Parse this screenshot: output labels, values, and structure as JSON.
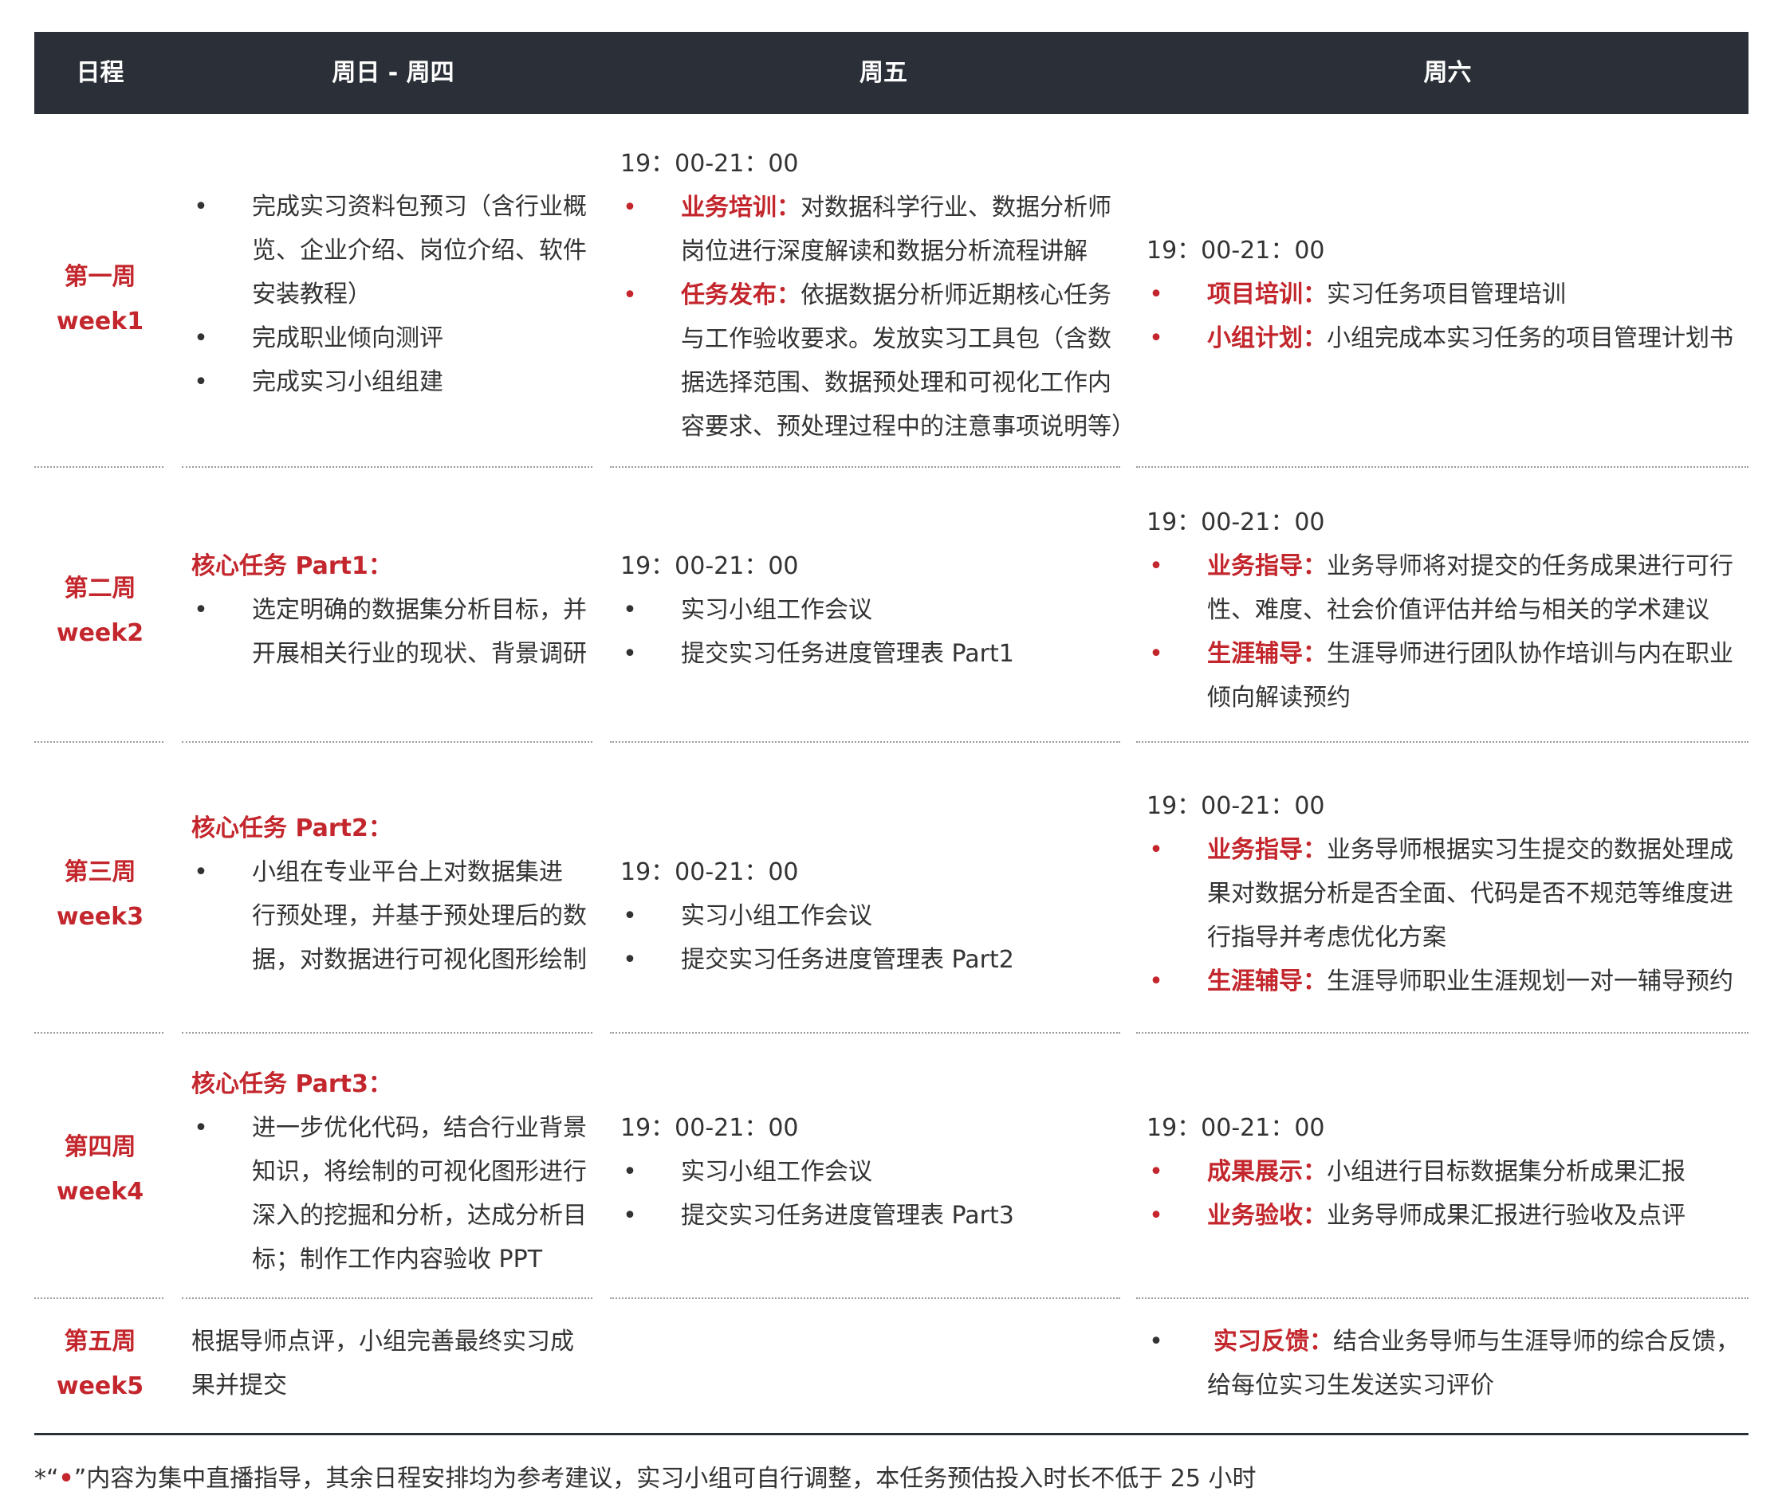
{
  "header": {
    "col1": "日程",
    "col2": "周日 - 周四",
    "col3": "周五",
    "col4": "周六"
  },
  "rows": [
    {
      "week_cn": "第一周",
      "week_en": "week1",
      "sun_thu": {
        "lines": [
          [
            "完成实习资料包预习（含行业概",
            "览、企业介绍、岗位介绍、软件",
            "安装教程）"
          ],
          [
            "完成职业倾向测评"
          ],
          [
            "完成实习小组组建"
          ]
        ]
      },
      "fri": {
        "time": "19：00-21：00",
        "items": [
          {
            "label": "业务培训：",
            "lines": [
              "对数据科学行业、数据分析师",
              "岗位进行深度解读和数据分析流程讲解"
            ]
          },
          {
            "label": "任务发布：",
            "lines": [
              "依据数据分析师近期核心任务",
              "与工作验收要求。发放实习工具包（含数",
              "据选择范围、数据预处理和可视化工作内",
              "容要求、预处理过程中的注意事项说明等）"
            ]
          }
        ]
      },
      "sat": {
        "time": "19：00-21：00",
        "items": [
          {
            "label": "项目培训：",
            "lines": [
              "实习任务项目管理培训"
            ]
          },
          {
            "label": "小组计划：",
            "lines": [
              "小组完成本实习任务的项目管理计划书"
            ]
          }
        ]
      }
    },
    {
      "week_cn": "第二周",
      "week_en": "week2",
      "sun_thu": {
        "title": "核心任务 Part1：",
        "lines": [
          [
            "选定明确的数据集分析目标，并",
            "开展相关行业的现状、背景调研"
          ]
        ]
      },
      "fri": {
        "time": "19：00-21：00",
        "plain": [
          "实习小组工作会议",
          "提交实习任务进度管理表 Part1"
        ]
      },
      "sat": {
        "time": "19：00-21：00",
        "items": [
          {
            "label": "业务指导：",
            "lines": [
              "业务导师将对提交的任务成果进行可行",
              "性、难度、社会价值评估并给与相关的学术建议"
            ]
          },
          {
            "label": "生涯辅导：",
            "lines": [
              "生涯导师进行团队协作培训与内在职业",
              "倾向解读预约"
            ]
          }
        ]
      }
    },
    {
      "week_cn": "第三周",
      "week_en": "week3",
      "sun_thu": {
        "title": "核心任务 Part2：",
        "lines": [
          [
            "小组在专业平台上对数据集进",
            "行预处理，并基于预处理后的数",
            "据，对数据进行可视化图形绘制"
          ]
        ]
      },
      "fri": {
        "time": "19：00-21：00",
        "plain": [
          "实习小组工作会议",
          "提交实习任务进度管理表 Part2"
        ]
      },
      "sat": {
        "time": "19：00-21：00",
        "items": [
          {
            "label": "业务指导：",
            "lines": [
              "业务导师根据实习生提交的数据处理成",
              "果对数据分析是否全面、代码是否不规范等维度进",
              "行指导并考虑优化方案"
            ]
          },
          {
            "label": "生涯辅导：",
            "lines": [
              "生涯导师职业生涯规划一对一辅导预约"
            ]
          }
        ]
      }
    },
    {
      "week_cn": "第四周",
      "week_en": "week4",
      "sun_thu": {
        "title": "核心任务 Part3：",
        "lines": [
          [
            "进一步优化代码，结合行业背景",
            "知识，将绘制的可视化图形进行",
            "深入的挖掘和分析，达成分析目",
            "标；制作工作内容验收 PPT"
          ]
        ]
      },
      "fri": {
        "time": "19：00-21：00",
        "plain": [
          "实习小组工作会议",
          "提交实习任务进度管理表 Part3"
        ]
      },
      "sat": {
        "time": "19：00-21：00",
        "items": [
          {
            "label": "成果展示：",
            "lines": [
              "小组进行目标数据集分析成果汇报"
            ]
          },
          {
            "label": "业务验收：",
            "lines": [
              "业务导师成果汇报进行验收及点评"
            ]
          }
        ]
      }
    },
    {
      "week_cn": "第五周",
      "week_en": "week5",
      "sun_thu": {
        "para": [
          "根据导师点评，小组完善最终实习成",
          "果并提交"
        ]
      },
      "sat": {
        "items": [
          {
            "label": "实习反馈：",
            "lines": [
              "结合业务导师与生涯导师的综合反馈，",
              "给每位实习生发送实习评价"
            ]
          }
        ]
      }
    }
  ],
  "footnote": {
    "prefix": "*“",
    "dot": "•",
    "suffix": "”内容为集中直播指导，其余日程安排均为参考建议，实习小组可自行调整，本任务预估投入时长不低于 25 小时"
  },
  "colors": {
    "header_bg": "#2b3038",
    "accent_red": "#c3262c",
    "text": "#333333"
  }
}
